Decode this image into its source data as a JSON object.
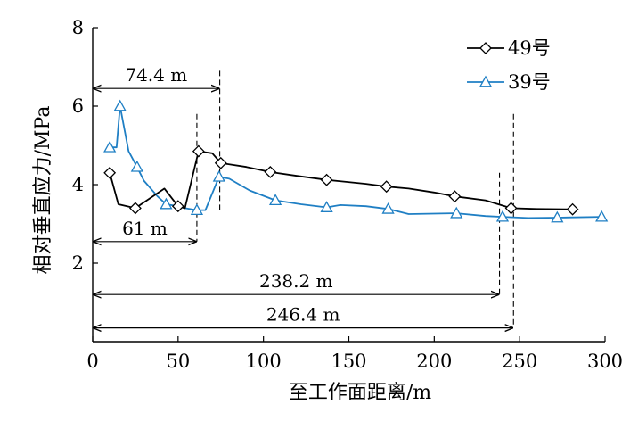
{
  "chart_data": {
    "type": "line",
    "xlabel": "至工作面距离/m",
    "ylabel": "相对垂直应力/MPa",
    "xlim": [
      0,
      300
    ],
    "ylim": [
      0,
      8
    ],
    "xticks": [
      0,
      50,
      100,
      150,
      200,
      250,
      300
    ],
    "yticks": [
      2,
      4,
      6,
      8
    ],
    "grid": false,
    "legend_position": "top-right",
    "series": [
      {
        "name": "49号",
        "marker": "diamond",
        "color": "#000000",
        "x": [
          10,
          15,
          25,
          42,
          50,
          54,
          62,
          70,
          75,
          90,
          104,
          120,
          137,
          160,
          172,
          185,
          200,
          212,
          230,
          245,
          260,
          281
        ],
        "y": [
          4.3,
          3.5,
          3.4,
          3.9,
          3.45,
          3.4,
          4.85,
          4.8,
          4.55,
          4.45,
          4.32,
          4.22,
          4.12,
          4.02,
          3.95,
          3.9,
          3.8,
          3.7,
          3.6,
          3.4,
          3.38,
          3.37
        ],
        "marker_x": [
          10,
          25,
          50,
          62,
          75,
          104,
          137,
          172,
          212,
          245,
          281
        ],
        "marker_y": [
          4.3,
          3.4,
          3.45,
          4.85,
          4.55,
          4.32,
          4.12,
          3.95,
          3.7,
          3.4,
          3.37
        ]
      },
      {
        "name": "39号",
        "marker": "triangle",
        "color": "#1f7fc4",
        "x": [
          10,
          14,
          16,
          21,
          26,
          30,
          38,
          43,
          50,
          54,
          61,
          66,
          74,
          80,
          92,
          107,
          122,
          137,
          145,
          160,
          173,
          185,
          213,
          230,
          240,
          255,
          272,
          298
        ],
        "y": [
          4.95,
          4.95,
          6.0,
          4.85,
          4.45,
          4.1,
          3.7,
          3.5,
          3.45,
          3.4,
          3.35,
          3.35,
          4.2,
          4.15,
          3.85,
          3.6,
          3.5,
          3.42,
          3.48,
          3.45,
          3.38,
          3.25,
          3.27,
          3.2,
          3.18,
          3.15,
          3.16,
          3.18
        ],
        "marker_x": [
          10,
          16,
          26,
          43,
          61,
          74,
          107,
          137,
          173,
          213,
          240,
          272,
          298
        ],
        "marker_y": [
          4.95,
          6.0,
          4.45,
          3.5,
          3.35,
          4.2,
          3.6,
          3.42,
          3.38,
          3.27,
          3.18,
          3.16,
          3.18
        ]
      }
    ],
    "annotations": [
      {
        "label": "74.4 m",
        "x_start": 0,
        "x_end": 74.4,
        "y": 6.45,
        "vline_y": [
          6.9,
          3.35
        ]
      },
      {
        "label": "61 m",
        "x_start": 0,
        "x_end": 61,
        "y": 2.55,
        "vline_y": [
          5.8,
          2.55
        ]
      },
      {
        "label": "238.2 m",
        "x_start": 0,
        "x_end": 238.2,
        "y": 1.2,
        "vline_y": [
          4.3,
          1.2
        ]
      },
      {
        "label": "246.4 m",
        "x_start": 0,
        "x_end": 246.4,
        "y": 0.35,
        "vline_y": [
          5.8,
          0.35
        ]
      }
    ]
  }
}
